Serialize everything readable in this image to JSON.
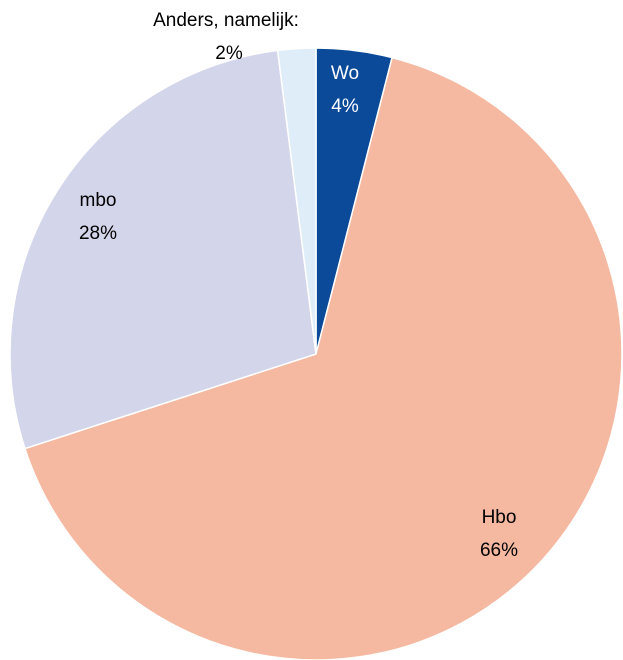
{
  "chart_data": {
    "type": "pie",
    "title": "",
    "slices": [
      {
        "label": "Wo",
        "value": 4,
        "value_label": "4%",
        "color": "#0B4A99",
        "label_color": "#ffffff"
      },
      {
        "label": "Hbo",
        "value": 66,
        "value_label": "66%",
        "color": "#F5B8A0",
        "label_color": "#000000"
      },
      {
        "label": "mbo",
        "value": 28,
        "value_label": "28%",
        "color": "#D3D5EA",
        "label_color": "#000000"
      },
      {
        "label": "Anders, namelijk:",
        "value": 2,
        "value_label": "2%",
        "color": "#DFEDF9",
        "label_color": "#000000"
      }
    ],
    "start_angle_deg": 0,
    "direction": "clockwise",
    "legend": "none"
  }
}
